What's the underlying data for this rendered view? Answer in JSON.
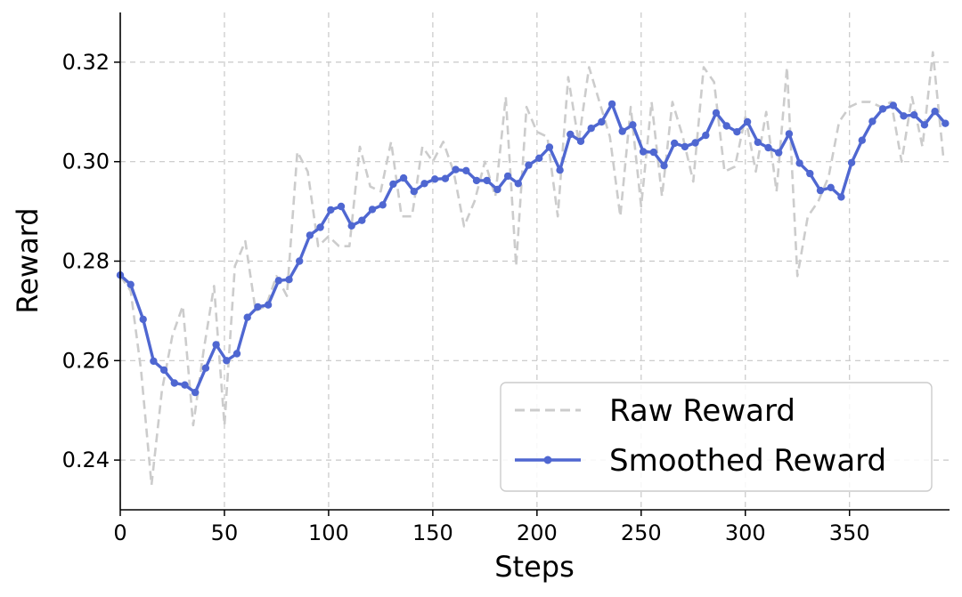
{
  "chart_data": {
    "type": "line",
    "title": "",
    "xlabel": "Steps",
    "ylabel": "Reward",
    "xlim": [
      0,
      398
    ],
    "ylim": [
      0.23,
      0.33
    ],
    "x_ticks": [
      0,
      50,
      100,
      150,
      200,
      250,
      300,
      350
    ],
    "y_ticks": [
      0.24,
      0.26,
      0.28,
      0.3,
      0.32
    ],
    "grid": true,
    "legend_position": "lower-right",
    "series": [
      {
        "name": "Raw Reward",
        "style": "dashed",
        "color": "#cccccc",
        "x": [
          0,
          5,
          10,
          15,
          20,
          25,
          30,
          35,
          40,
          45,
          50,
          55,
          60,
          65,
          70,
          75,
          80,
          85,
          90,
          95,
          100,
          105,
          110,
          115,
          120,
          125,
          130,
          135,
          140,
          145,
          150,
          155,
          160,
          165,
          170,
          175,
          180,
          185,
          190,
          195,
          200,
          205,
          210,
          215,
          220,
          225,
          230,
          235,
          240,
          245,
          250,
          255,
          260,
          265,
          270,
          275,
          280,
          285,
          290,
          295,
          300,
          305,
          310,
          315,
          320,
          325,
          330,
          335,
          340,
          345,
          350,
          355,
          360,
          365,
          370,
          375,
          380,
          385,
          390,
          395
        ],
        "y": [
          0.277,
          0.274,
          0.258,
          0.235,
          0.254,
          0.265,
          0.271,
          0.247,
          0.262,
          0.275,
          0.247,
          0.279,
          0.284,
          0.27,
          0.271,
          0.277,
          0.273,
          0.302,
          0.298,
          0.283,
          0.285,
          0.283,
          0.283,
          0.303,
          0.295,
          0.294,
          0.304,
          0.289,
          0.289,
          0.303,
          0.3,
          0.304,
          0.298,
          0.287,
          0.292,
          0.3,
          0.293,
          0.313,
          0.279,
          0.311,
          0.306,
          0.305,
          0.289,
          0.317,
          0.304,
          0.319,
          0.312,
          0.305,
          0.289,
          0.311,
          0.291,
          0.312,
          0.293,
          0.312,
          0.305,
          0.296,
          0.319,
          0.316,
          0.298,
          0.299,
          0.309,
          0.298,
          0.31,
          0.294,
          0.319,
          0.277,
          0.289,
          0.292,
          0.297,
          0.308,
          0.311,
          0.312,
          0.312,
          0.311,
          0.312,
          0.3,
          0.313,
          0.303,
          0.322,
          0.301
        ]
      },
      {
        "name": "Smoothed Reward",
        "style": "solid-markers",
        "color": "#4f67d1",
        "x": [
          0,
          5,
          11,
          16,
          21,
          26,
          31,
          36,
          41,
          46,
          51,
          56,
          61,
          66,
          71,
          76,
          81,
          86,
          91,
          96,
          101,
          106,
          111,
          116,
          121,
          126,
          131,
          136,
          141,
          146,
          151,
          156,
          161,
          166,
          171,
          176,
          181,
          186,
          191,
          196,
          201,
          206,
          211,
          216,
          221,
          226,
          231,
          236,
          241,
          246,
          251,
          256,
          261,
          266,
          271,
          276,
          281,
          286,
          291,
          296,
          301,
          306,
          311,
          316,
          321,
          326,
          331,
          336,
          341,
          346,
          351,
          356,
          361,
          366,
          371,
          376,
          381,
          386,
          391,
          396
        ],
        "y": [
          0.2772,
          0.2753,
          0.2683,
          0.2599,
          0.2581,
          0.2555,
          0.2551,
          0.2536,
          0.2585,
          0.2632,
          0.26,
          0.2614,
          0.2687,
          0.2708,
          0.2712,
          0.2761,
          0.2763,
          0.28,
          0.2852,
          0.2868,
          0.2903,
          0.291,
          0.2871,
          0.2882,
          0.2904,
          0.2913,
          0.2955,
          0.2967,
          0.294,
          0.2956,
          0.2965,
          0.2966,
          0.2984,
          0.2982,
          0.2962,
          0.2962,
          0.2944,
          0.2971,
          0.2956,
          0.2993,
          0.3007,
          0.3029,
          0.2983,
          0.3055,
          0.3041,
          0.3067,
          0.308,
          0.3116,
          0.3061,
          0.3074,
          0.302,
          0.3019,
          0.2992,
          0.3037,
          0.303,
          0.3038,
          0.3053,
          0.3098,
          0.3072,
          0.306,
          0.308,
          0.3039,
          0.3028,
          0.3018,
          0.3056,
          0.2997,
          0.2976,
          0.2942,
          0.2948,
          0.2929,
          0.2998,
          0.3043,
          0.3081,
          0.3106,
          0.3113,
          0.3092,
          0.3094,
          0.3074,
          0.3101,
          0.3077
        ]
      }
    ]
  }
}
